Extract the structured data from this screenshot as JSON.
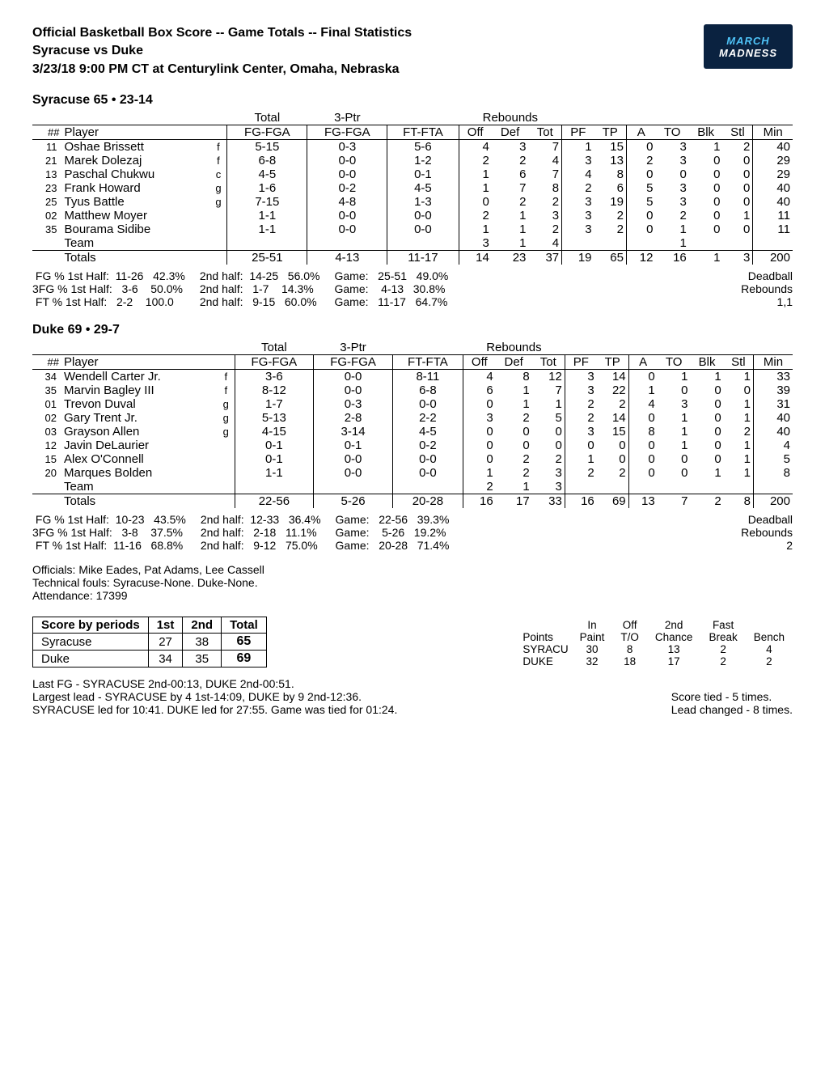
{
  "header": {
    "line1": "Official Basketball Box Score -- Game Totals -- Final Statistics",
    "line2": "Syracuse vs Duke",
    "line3": "3/23/18 9:00 PM CT at Centurylink Center, Omaha, Nebraska",
    "logo_line1": "MARCH",
    "logo_line2": "MADNESS"
  },
  "columns": {
    "num": "##",
    "player": "Player",
    "total": "Total",
    "threeptr": "3-Ptr",
    "rebounds": "Rebounds",
    "fgfga": "FG-FGA",
    "fg3fga": "FG-FGA",
    "ftfta": "FT-FTA",
    "off": "Off",
    "def": "Def",
    "tot": "Tot",
    "pf": "PF",
    "tp": "TP",
    "a": "A",
    "to": "TO",
    "blk": "Blk",
    "stl": "Stl",
    "min": "Min"
  },
  "teams": [
    {
      "header": "Syracuse 65 • 23-14",
      "players": [
        {
          "num": "11",
          "name": "Oshae Brissett",
          "pos": "f",
          "fg": "5-15",
          "fg3": "0-3",
          "ft": "5-6",
          "off": "4",
          "def": "3",
          "tot": "7",
          "pf": "1",
          "tp": "15",
          "a": "0",
          "to": "3",
          "blk": "1",
          "stl": "2",
          "min": "40"
        },
        {
          "num": "21",
          "name": "Marek Dolezaj",
          "pos": "f",
          "fg": "6-8",
          "fg3": "0-0",
          "ft": "1-2",
          "off": "2",
          "def": "2",
          "tot": "4",
          "pf": "3",
          "tp": "13",
          "a": "2",
          "to": "3",
          "blk": "0",
          "stl": "0",
          "min": "29"
        },
        {
          "num": "13",
          "name": "Paschal Chukwu",
          "pos": "c",
          "fg": "4-5",
          "fg3": "0-0",
          "ft": "0-1",
          "off": "1",
          "def": "6",
          "tot": "7",
          "pf": "4",
          "tp": "8",
          "a": "0",
          "to": "0",
          "blk": "0",
          "stl": "0",
          "min": "29"
        },
        {
          "num": "23",
          "name": "Frank Howard",
          "pos": "g",
          "fg": "1-6",
          "fg3": "0-2",
          "ft": "4-5",
          "off": "1",
          "def": "7",
          "tot": "8",
          "pf": "2",
          "tp": "6",
          "a": "5",
          "to": "3",
          "blk": "0",
          "stl": "0",
          "min": "40"
        },
        {
          "num": "25",
          "name": "Tyus Battle",
          "pos": "g",
          "fg": "7-15",
          "fg3": "4-8",
          "ft": "1-3",
          "off": "0",
          "def": "2",
          "tot": "2",
          "pf": "3",
          "tp": "19",
          "a": "5",
          "to": "3",
          "blk": "0",
          "stl": "0",
          "min": "40"
        },
        {
          "num": "02",
          "name": "Matthew Moyer",
          "pos": "",
          "fg": "1-1",
          "fg3": "0-0",
          "ft": "0-0",
          "off": "2",
          "def": "1",
          "tot": "3",
          "pf": "3",
          "tp": "2",
          "a": "0",
          "to": "2",
          "blk": "0",
          "stl": "1",
          "min": "11"
        },
        {
          "num": "35",
          "name": "Bourama Sidibe",
          "pos": "",
          "fg": "1-1",
          "fg3": "0-0",
          "ft": "0-0",
          "off": "1",
          "def": "1",
          "tot": "2",
          "pf": "3",
          "tp": "2",
          "a": "0",
          "to": "1",
          "blk": "0",
          "stl": "0",
          "min": "11"
        }
      ],
      "team_reb": {
        "off": "3",
        "def": "1",
        "tot": "4",
        "to": "1"
      },
      "totals": {
        "fg": "25-51",
        "fg3": "4-13",
        "ft": "11-17",
        "off": "14",
        "def": "23",
        "tot": "37",
        "pf": "19",
        "tp": "65",
        "a": "12",
        "to": "16",
        "blk": "1",
        "stl": "3",
        "min": "200"
      },
      "pct": {
        "c1": " FG % 1st Half:  11-26   42.3%\n3FG % 1st Half:   3-6    50.0%\n FT % 1st Half:   2-2    100.0",
        "c2": "2nd half:  14-25   56.0%\n2nd half:   1-7    14.3%\n2nd half:   9-15   60.0%",
        "c3": "Game:   25-51   49.0%\nGame:    4-13   30.8%\nGame:   11-17   64.7%"
      },
      "deadball": "Deadball\nRebounds\n1,1"
    },
    {
      "header": "Duke 69 • 29-7",
      "players": [
        {
          "num": "34",
          "name": "Wendell Carter Jr.",
          "pos": "f",
          "fg": "3-6",
          "fg3": "0-0",
          "ft": "8-11",
          "off": "4",
          "def": "8",
          "tot": "12",
          "pf": "3",
          "tp": "14",
          "a": "0",
          "to": "1",
          "blk": "1",
          "stl": "1",
          "min": "33"
        },
        {
          "num": "35",
          "name": "Marvin Bagley III",
          "pos": "f",
          "fg": "8-12",
          "fg3": "0-0",
          "ft": "6-8",
          "off": "6",
          "def": "1",
          "tot": "7",
          "pf": "3",
          "tp": "22",
          "a": "1",
          "to": "0",
          "blk": "0",
          "stl": "0",
          "min": "39"
        },
        {
          "num": "01",
          "name": "Trevon Duval",
          "pos": "g",
          "fg": "1-7",
          "fg3": "0-3",
          "ft": "0-0",
          "off": "0",
          "def": "1",
          "tot": "1",
          "pf": "2",
          "tp": "2",
          "a": "4",
          "to": "3",
          "blk": "0",
          "stl": "1",
          "min": "31"
        },
        {
          "num": "02",
          "name": "Gary Trent Jr.",
          "pos": "g",
          "fg": "5-13",
          "fg3": "2-8",
          "ft": "2-2",
          "off": "3",
          "def": "2",
          "tot": "5",
          "pf": "2",
          "tp": "14",
          "a": "0",
          "to": "1",
          "blk": "0",
          "stl": "1",
          "min": "40"
        },
        {
          "num": "03",
          "name": "Grayson Allen",
          "pos": "g",
          "fg": "4-15",
          "fg3": "3-14",
          "ft": "4-5",
          "off": "0",
          "def": "0",
          "tot": "0",
          "pf": "3",
          "tp": "15",
          "a": "8",
          "to": "1",
          "blk": "0",
          "stl": "2",
          "min": "40"
        },
        {
          "num": "12",
          "name": "Javin DeLaurier",
          "pos": "",
          "fg": "0-1",
          "fg3": "0-1",
          "ft": "0-2",
          "off": "0",
          "def": "0",
          "tot": "0",
          "pf": "0",
          "tp": "0",
          "a": "0",
          "to": "1",
          "blk": "0",
          "stl": "1",
          "min": "4"
        },
        {
          "num": "15",
          "name": "Alex O'Connell",
          "pos": "",
          "fg": "0-1",
          "fg3": "0-0",
          "ft": "0-0",
          "off": "0",
          "def": "2",
          "tot": "2",
          "pf": "1",
          "tp": "0",
          "a": "0",
          "to": "0",
          "blk": "0",
          "stl": "1",
          "min": "5"
        },
        {
          "num": "20",
          "name": "Marques Bolden",
          "pos": "",
          "fg": "1-1",
          "fg3": "0-0",
          "ft": "0-0",
          "off": "1",
          "def": "2",
          "tot": "3",
          "pf": "2",
          "tp": "2",
          "a": "0",
          "to": "0",
          "blk": "1",
          "stl": "1",
          "min": "8"
        }
      ],
      "team_reb": {
        "off": "2",
        "def": "1",
        "tot": "3",
        "to": ""
      },
      "totals": {
        "fg": "22-56",
        "fg3": "5-26",
        "ft": "20-28",
        "off": "16",
        "def": "17",
        "tot": "33",
        "pf": "16",
        "tp": "69",
        "a": "13",
        "to": "7",
        "blk": "2",
        "stl": "8",
        "min": "200"
      },
      "pct": {
        "c1": " FG % 1st Half:  10-23   43.5%\n3FG % 1st Half:   3-8    37.5%\n FT % 1st Half:  11-16   68.8%",
        "c2": "2nd half:  12-33   36.4%\n2nd half:   2-18   11.1%\n2nd half:   9-12   75.0%",
        "c3": "Game:   22-56   39.3%\nGame:    5-26   19.2%\nGame:   20-28   71.4%"
      },
      "deadball": "Deadball\nRebounds\n2"
    }
  ],
  "officials": {
    "line1": "Officials: Mike Eades, Pat Adams, Lee Cassell",
    "line2": "Technical fouls: Syracuse-None. Duke-None.",
    "line3": "Attendance: 17399"
  },
  "periods": {
    "title": "Score by periods",
    "cols": [
      "1st",
      "2nd",
      "Total"
    ],
    "rows": [
      {
        "name": "Syracuse",
        "vals": [
          "27",
          "38",
          "65"
        ]
      },
      {
        "name": "Duke",
        "vals": [
          "34",
          "35",
          "69"
        ]
      }
    ]
  },
  "points_table": {
    "headers": [
      "",
      "In",
      "Off",
      "2nd",
      "Fast",
      ""
    ],
    "sub": [
      "Points",
      "Paint",
      "T/O",
      "Chance",
      "Break",
      "Bench"
    ],
    "rows": [
      {
        "name": "SYRACU",
        "vals": [
          "30",
          "8",
          "13",
          "2",
          "4"
        ]
      },
      {
        "name": "DUKE",
        "vals": [
          "32",
          "18",
          "17",
          "2",
          "2"
        ]
      }
    ]
  },
  "footer": {
    "left1": "Last FG - SYRACUSE 2nd-00:13, DUKE 2nd-00:51.",
    "left2": "Largest lead - SYRACUSE by 4 1st-14:09, DUKE by 9 2nd-12:36.",
    "left3": "SYRACUSE led for 10:41. DUKE led for 27:55. Game  was tied for 01:24.",
    "right1": "Score tied - 5 times.",
    "right2": "Lead changed - 8 times."
  }
}
